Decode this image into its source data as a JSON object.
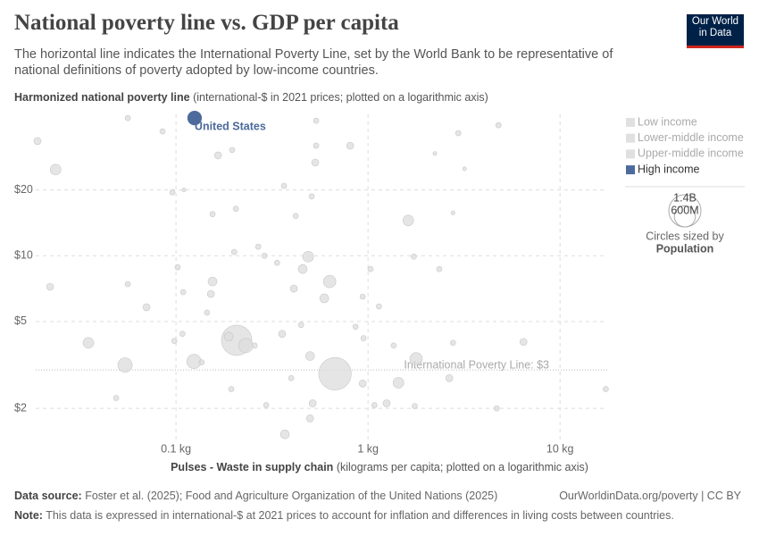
{
  "chart_data": {
    "type": "scatter",
    "title": "National poverty line vs. GDP per capita",
    "subtitle": "The horizontal line indicates the International Poverty Line, set by the World Bank to be representative of national definitions of poverty adopted by low-income countries.",
    "y_label": "Harmonized national poverty line",
    "y_label_note": "(international-$ in 2021 prices; plotted on a logarithmic axis)",
    "x_label": "Pulses - Waste in supply chain",
    "x_label_note": "(kilograms per capita; plotted on a logarithmic axis)",
    "source_label": "Data source:",
    "source": "Foster et al. (2025); Food and Agriculture Organization of the United Nations (2025)",
    "credit": "OurWorldinData.org/poverty | CC BY",
    "note_label": "Note:",
    "note": "This data is expressed in international-$ at 2021 prices to account for inflation and differences in living costs between countries.",
    "logo": "Our World in Data",
    "xscale": "log",
    "yscale": "log",
    "grid": true,
    "xlim": [
      0.0186,
      17.6
    ],
    "ylim": [
      1.4,
      44.4
    ],
    "xticks": [
      {
        "value": 0.1,
        "label": "0.1 kg"
      },
      {
        "value": 1,
        "label": "1 kg"
      },
      {
        "value": 10,
        "label": "10 kg"
      }
    ],
    "yticks": [
      {
        "value": 2,
        "label": "$2"
      },
      {
        "value": 5,
        "label": "$5"
      },
      {
        "value": 10,
        "label": "$10"
      },
      {
        "value": 20,
        "label": "$20"
      }
    ],
    "reference_line": {
      "value": 3,
      "label": "International Poverty Line: $3"
    },
    "legend": {
      "position": "right",
      "entries": [
        {
          "name": "Low income",
          "color": "#e0e0e0"
        },
        {
          "name": "Lower-middle income",
          "color": "#e0e0e0"
        },
        {
          "name": "Upper-middle income",
          "color": "#e0e0e0"
        },
        {
          "name": "High income",
          "color": "#4c6a9c"
        }
      ]
    },
    "size_legend": {
      "title": "Circles sized by",
      "variable": "Population",
      "entries": [
        {
          "value": 1400,
          "label": "1.4B"
        },
        {
          "value": 600,
          "label": "600M"
        }
      ]
    },
    "highlight": {
      "name": "United States",
      "color": "#4c6a9c",
      "x": [
        0.125
      ],
      "y": [
        42.7
      ],
      "size": [
        340
      ]
    },
    "points": {
      "color": "#dcdcdc",
      "x": [
        0.019,
        0.0236,
        0.0561,
        0.0851,
        0.1655,
        0.196,
        0.537,
        0.537,
        0.531,
        0.807,
        2.95,
        4.78,
        2.23,
        3.18,
        0.0958,
        0.11,
        0.365,
        0.509,
        1.62,
        2.77,
        0.155,
        0.205,
        0.42,
        0.268,
        0.289,
        0.488,
        0.457,
        0.336,
        0.201,
        0.102,
        0.155,
        0.152,
        0.0221,
        0.0561,
        0.109,
        0.631,
        0.411,
        0.592,
        0.938,
        1.03,
        1.73,
        2.35,
        1.14,
        0.0702,
        0.145,
        0.035,
        0.098,
        0.108,
        0.207,
        0.231,
        0.188,
        0.257,
        0.357,
        0.448,
        0.861,
        0.948,
        1.36,
        2.77,
        6.45,
        0.0543,
        0.124,
        0.136,
        0.499,
        0.673,
        1.78,
        1.44,
        2.65,
        0.398,
        0.194,
        0.938,
        1.25,
        0.295,
        1.08,
        0.0488,
        1.75,
        4.68,
        17.3,
        0.369,
        0.499,
        0.515
      ],
      "y": [
        33.5,
        24.8,
        42.7,
        37.1,
        28.8,
        30.5,
        41.5,
        31.9,
        26.7,
        31.9,
        36.4,
        39.6,
        29.4,
        25.0,
        19.5,
        20,
        20.9,
        18.7,
        14.5,
        15.7,
        15.5,
        16.4,
        15.2,
        11.0,
        10,
        9.9,
        8.69,
        9.28,
        10.4,
        8.85,
        7.62,
        6.68,
        7.21,
        7.41,
        6.81,
        7.62,
        7.07,
        6.38,
        6.5,
        8.69,
        9.9,
        8.69,
        5.86,
        5.81,
        5.49,
        3.99,
        4.07,
        4.39,
        4.1,
        3.88,
        4.26,
        3.88,
        4.39,
        4.82,
        4.73,
        4.19,
        3.88,
        3.99,
        4.03,
        3.16,
        3.28,
        3.25,
        3.47,
        2.88,
        3.37,
        2.62,
        2.75,
        2.75,
        2.45,
        2.6,
        2.11,
        2.07,
        2.07,
        2.23,
        2.05,
        2.0,
        2.45,
        1.52,
        1.8,
        2.11
      ],
      "size": [
        69,
        156,
        39,
        39,
        69,
        39,
        39,
        39,
        69,
        69,
        39,
        39,
        20,
        20,
        39,
        20,
        39,
        39,
        156,
        20,
        39,
        39,
        39,
        39,
        39,
        156,
        108,
        39,
        39,
        39,
        108,
        69,
        69,
        39,
        39,
        212,
        69,
        108,
        39,
        39,
        39,
        39,
        39,
        69,
        39,
        156,
        39,
        39,
        1250,
        277,
        108,
        39,
        69,
        39,
        39,
        39,
        39,
        39,
        69,
        277,
        277,
        39,
        108,
        1440,
        212,
        156,
        69,
        39,
        39,
        69,
        69,
        39,
        39,
        39,
        39,
        39,
        39,
        108,
        69,
        69
      ]
    }
  }
}
